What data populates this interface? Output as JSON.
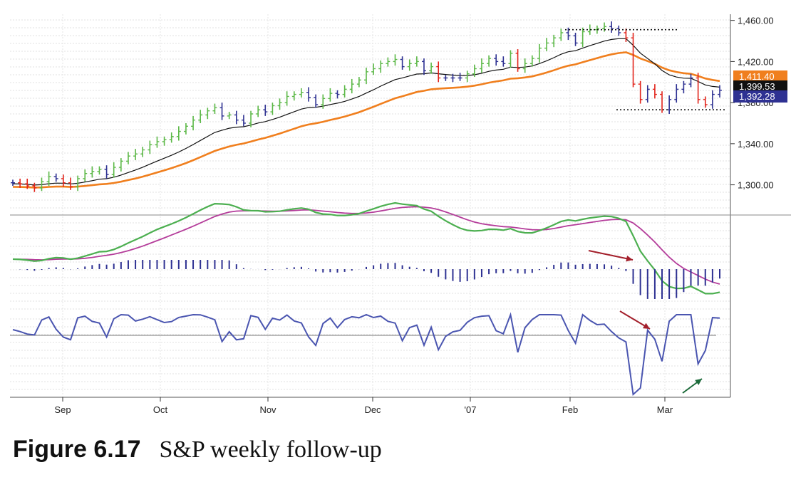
{
  "caption": {
    "number": "Figure 6.17",
    "title": "S&P weekly follow-up"
  },
  "chart_data": {
    "type": "line",
    "panels": [
      "price",
      "macd",
      "force_index"
    ],
    "x_labels": [
      "Sep",
      "Oct",
      "Nov",
      "Dec",
      "'07",
      "Feb",
      "Mar"
    ],
    "y_ticks": [
      {
        "label": "1,460.00",
        "value": 1460
      },
      {
        "label": "1,420.00",
        "value": 1420
      },
      {
        "label": "1,380.00",
        "value": 1380
      },
      {
        "label": "1,340.00",
        "value": 1340
      },
      {
        "label": "1,300.00",
        "value": 1300
      }
    ],
    "ylim": [
      1272,
      1466
    ],
    "price_tags": [
      {
        "label": "1,411.40",
        "value": 1411.4,
        "color": "#f07f1e"
      },
      {
        "label": "1,399.53",
        "value": 1399.5,
        "color": "#111111"
      },
      {
        "label": "1,392.28",
        "value": 1392.3,
        "color": "#2e3192"
      }
    ],
    "series": [
      {
        "id": "bars",
        "type": "ohlc",
        "close": [
          1302,
          1301,
          1299,
          1297,
          1303,
          1308,
          1306,
          1302,
          1298,
          1306,
          1311,
          1313,
          1315,
          1310,
          1317,
          1323,
          1328,
          1330,
          1334,
          1339,
          1342,
          1344,
          1347,
          1352,
          1357,
          1363,
          1368,
          1372,
          1375,
          1367,
          1368,
          1363,
          1360,
          1369,
          1373,
          1371,
          1377,
          1380,
          1386,
          1388,
          1390,
          1385,
          1378,
          1384,
          1389,
          1388,
          1393,
          1398,
          1402,
          1410,
          1413,
          1418,
          1420,
          1422,
          1415,
          1418,
          1420,
          1411,
          1415,
          1404,
          1404,
          1404,
          1404,
          1408,
          1413,
          1418,
          1423,
          1420,
          1418,
          1428,
          1413,
          1418,
          1423,
          1433,
          1438,
          1443,
          1448,
          1445,
          1438,
          1449,
          1451,
          1452,
          1454,
          1452,
          1448,
          1443,
          1398,
          1383,
          1393,
          1388,
          1373,
          1383,
          1393,
          1398,
          1404,
          1383,
          1378,
          1388,
          1392
        ]
      },
      {
        "id": "ema-fast",
        "color": "#111111"
      },
      {
        "id": "ema-slow",
        "color": "#f07f1e"
      },
      {
        "id": "macd-line",
        "color": "#4caf50"
      },
      {
        "id": "macd-signal",
        "color": "#b43c9a"
      },
      {
        "id": "macd-histogram",
        "color": "#2e3192"
      },
      {
        "id": "force-index",
        "color": "#4a55b0"
      }
    ],
    "support_resistance": [
      1451,
      1373
    ],
    "annotations": [
      "arrow",
      "arrow",
      "arrow"
    ]
  }
}
